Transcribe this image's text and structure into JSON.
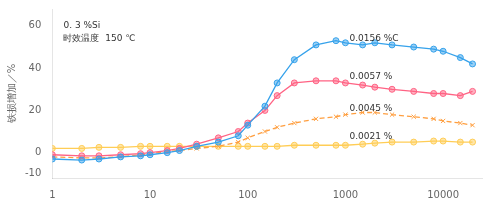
{
  "chart_data": {
    "type": "line",
    "log": "x",
    "grid": false,
    "y_label": "铁损增加／%",
    "xlim": [
      1,
      25000
    ],
    "ylim": [
      -12,
      68
    ],
    "xticks": [
      1,
      10,
      100,
      1000,
      10000
    ],
    "yticks": [
      -10,
      0,
      20,
      40,
      60
    ],
    "x": [
      1,
      2,
      3,
      5,
      8,
      10,
      15,
      20,
      30,
      50,
      80,
      100,
      150,
      200,
      300,
      500,
      800,
      1000,
      1500,
      2000,
      3000,
      5000,
      8000,
      10000,
      15000,
      20000
    ],
    "series": [
      {
        "marker": "circle",
        "line_style": "solid",
        "values": [
          -3,
          -3.5,
          -3,
          -2,
          -1.5,
          -1,
          0,
          1,
          3,
          5,
          8,
          13,
          22,
          33,
          44,
          51,
          53,
          52,
          51,
          52,
          51,
          50,
          49,
          48,
          45,
          42
        ]
      },
      {
        "marker": "circle",
        "line_style": "solid",
        "values": [
          -1,
          -1.5,
          -1.5,
          -1,
          -0.5,
          0,
          1,
          2,
          4,
          7,
          10,
          14,
          20,
          27,
          33,
          34,
          34,
          33,
          32,
          31,
          30,
          29,
          28,
          28,
          27,
          29
        ]
      },
      {
        "marker": "x",
        "line_style": "dashed",
        "values": [
          -2,
          -2.5,
          -2.5,
          -2,
          -1,
          -0.5,
          0.5,
          1,
          2,
          3,
          5,
          7,
          10,
          12,
          14,
          16,
          17,
          18,
          19,
          19,
          18,
          17,
          16,
          15,
          14,
          13
        ]
      },
      {
        "marker": "circle",
        "line_style": "solid",
        "values": [
          2,
          2,
          2.5,
          2.5,
          3,
          3,
          3,
          3,
          3,
          3,
          3,
          3,
          3,
          3,
          3.5,
          3.5,
          3.5,
          3.5,
          4,
          4.5,
          5,
          5,
          5.5,
          5.5,
          5,
          5
        ]
      }
    ],
    "annotations": [
      {
        "text": "0. 3 %Si",
        "x": 1.3,
        "y": 60
      },
      {
        "text": "时效温度  150 ℃",
        "x": 1.3,
        "y": 54
      },
      {
        "text": "0.0156 %C",
        "x": 1100,
        "y": 54
      },
      {
        "text": "0.0057 %",
        "x": 1100,
        "y": 36
      },
      {
        "text": "0.0045 %",
        "x": 1100,
        "y": 21
      },
      {
        "text": "0.0021 %",
        "x": 1100,
        "y": 7.5
      }
    ]
  }
}
